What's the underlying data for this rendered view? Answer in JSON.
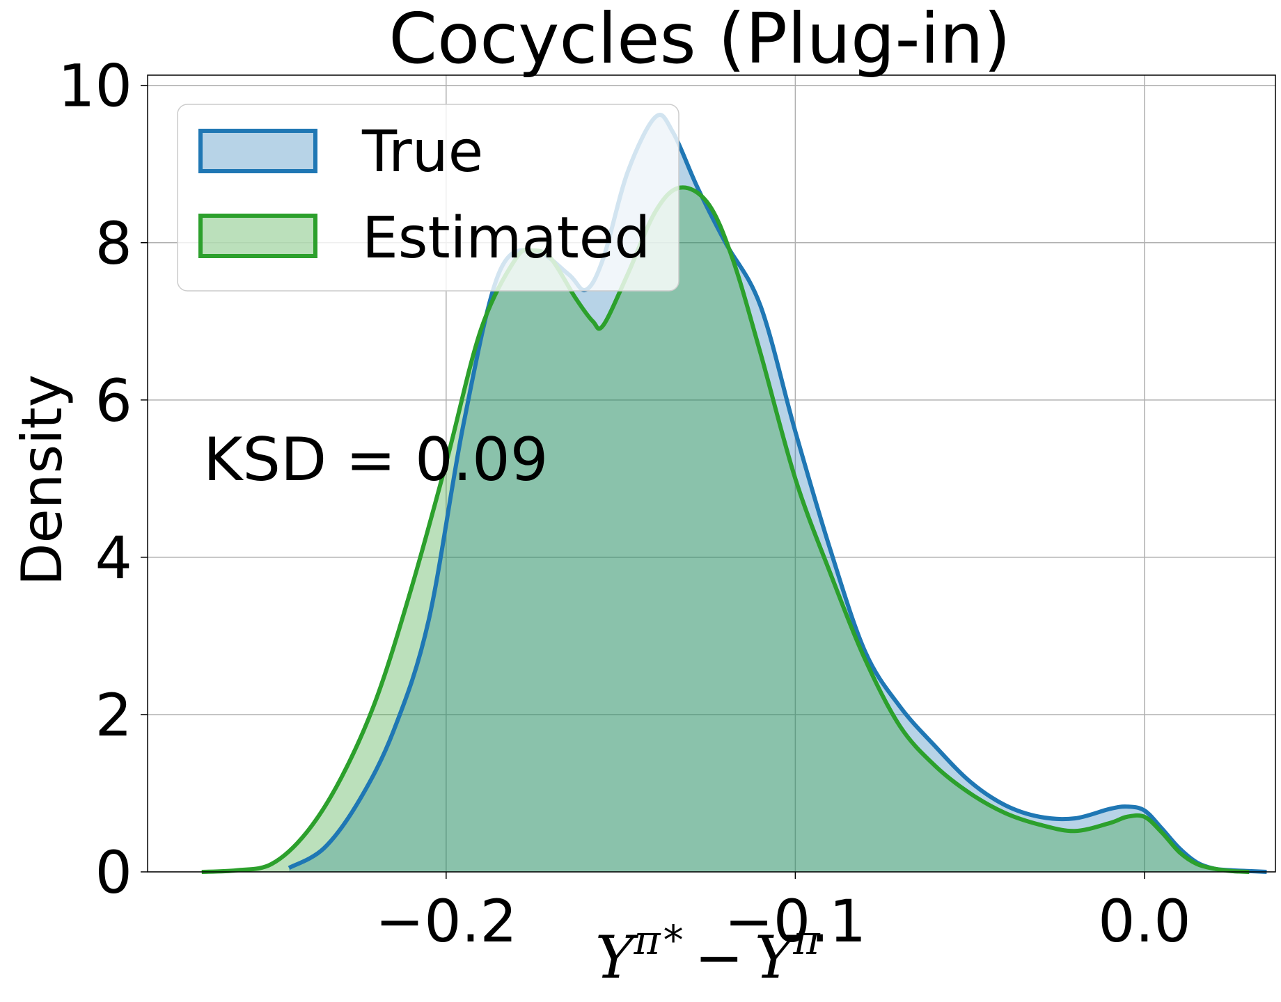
{
  "chart_data": {
    "type": "area",
    "title": "Cocycles (Plug-in)",
    "xlabel": "Y^{π*} − Y^{π}",
    "xlabel_parts": {
      "y1": "Y",
      "sup1": "π",
      "star": "*",
      "op": "−",
      "y2": "Y",
      "sup2": "π"
    },
    "ylabel": "Density",
    "xlim": [
      -0.2855,
      0.0375
    ],
    "ylim": [
      0,
      10.13
    ],
    "xticks": [
      -0.2,
      -0.1,
      0.0
    ],
    "xtick_labels": [
      "−0.2",
      "−0.1",
      "0.0"
    ],
    "yticks": [
      0,
      2,
      4,
      6,
      8,
      10
    ],
    "ytick_labels": [
      "0",
      "2",
      "4",
      "6",
      "8",
      "10"
    ],
    "grid": true,
    "legend_position": "upper-left",
    "annotation": "KSD = 0.09",
    "series": [
      {
        "name": "True",
        "line_color": "#1f77b4",
        "fill_color": "#1f77b4",
        "x": [
          -0.245,
          -0.235,
          -0.225,
          -0.215,
          -0.205,
          -0.195,
          -0.185,
          -0.175,
          -0.165,
          -0.16,
          -0.155,
          -0.148,
          -0.14,
          -0.135,
          -0.128,
          -0.12,
          -0.11,
          -0.1,
          -0.09,
          -0.08,
          -0.07,
          -0.06,
          -0.05,
          -0.04,
          -0.03,
          -0.02,
          -0.01,
          -0.005,
          0.0,
          0.005,
          0.01,
          0.015,
          0.02,
          0.025,
          0.03,
          0.035
        ],
        "values": [
          0.05,
          0.3,
          0.9,
          1.8,
          3.2,
          5.7,
          7.6,
          7.9,
          7.6,
          7.4,
          7.8,
          8.9,
          9.6,
          9.4,
          8.7,
          8.0,
          7.2,
          5.6,
          4.1,
          2.8,
          2.1,
          1.6,
          1.15,
          0.85,
          0.7,
          0.68,
          0.8,
          0.83,
          0.78,
          0.55,
          0.3,
          0.12,
          0.04,
          0.02,
          0.01,
          0.0
        ]
      },
      {
        "name": "Estimated",
        "line_color": "#2ca02c",
        "fill_color": "#2ca02c",
        "x": [
          -0.27,
          -0.26,
          -0.25,
          -0.24,
          -0.23,
          -0.22,
          -0.21,
          -0.2,
          -0.19,
          -0.18,
          -0.175,
          -0.17,
          -0.163,
          -0.158,
          -0.155,
          -0.148,
          -0.14,
          -0.133,
          -0.125,
          -0.118,
          -0.11,
          -0.1,
          -0.09,
          -0.08,
          -0.07,
          -0.06,
          -0.05,
          -0.04,
          -0.03,
          -0.02,
          -0.01,
          -0.005,
          0.0,
          0.005,
          0.01,
          0.015,
          0.02,
          0.025,
          0.03
        ],
        "values": [
          0.0,
          0.02,
          0.1,
          0.5,
          1.2,
          2.2,
          3.6,
          5.2,
          6.9,
          7.8,
          7.9,
          7.8,
          7.3,
          7.0,
          6.95,
          7.6,
          8.4,
          8.7,
          8.5,
          7.8,
          6.6,
          5.0,
          3.8,
          2.7,
          1.85,
          1.35,
          1.0,
          0.75,
          0.6,
          0.52,
          0.62,
          0.7,
          0.7,
          0.5,
          0.25,
          0.1,
          0.04,
          0.01,
          0.0
        ]
      }
    ]
  }
}
